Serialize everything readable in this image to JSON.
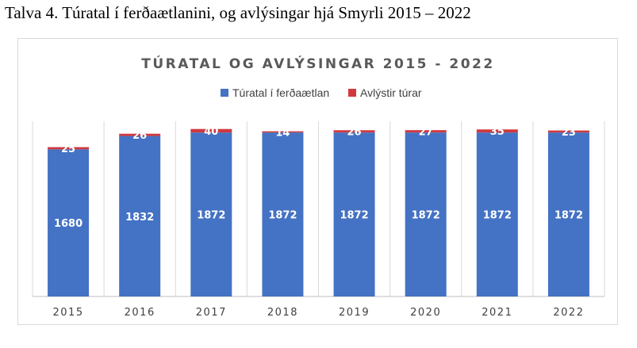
{
  "caption": "Talva 4. Túratal í ferðaætlanini, og avlýsingar hjá Smyrli 2015 – 2022",
  "colors": {
    "planned": "#4472c4",
    "cancelled": "#d0393e",
    "gridline": "#d9d9d9",
    "axis": "#bfbfbf"
  },
  "chart_data": {
    "type": "bar",
    "stacked": true,
    "title": "TÚRATAL OG AVLÝSINGAR 2015 - 2022",
    "xlabel": "",
    "ylabel": "",
    "ylim": [
      0,
      2000
    ],
    "grid": "vertical",
    "legend_position": "top",
    "categories": [
      "2015",
      "2016",
      "2017",
      "2018",
      "2019",
      "2020",
      "2021",
      "2022"
    ],
    "series": [
      {
        "name": "Túratal í ferðaætlan",
        "values": [
          1680,
          1832,
          1872,
          1872,
          1872,
          1872,
          1872,
          1872
        ]
      },
      {
        "name": "Avlýstir túrar",
        "values": [
          25,
          26,
          40,
          14,
          26,
          27,
          35,
          23
        ]
      }
    ]
  }
}
